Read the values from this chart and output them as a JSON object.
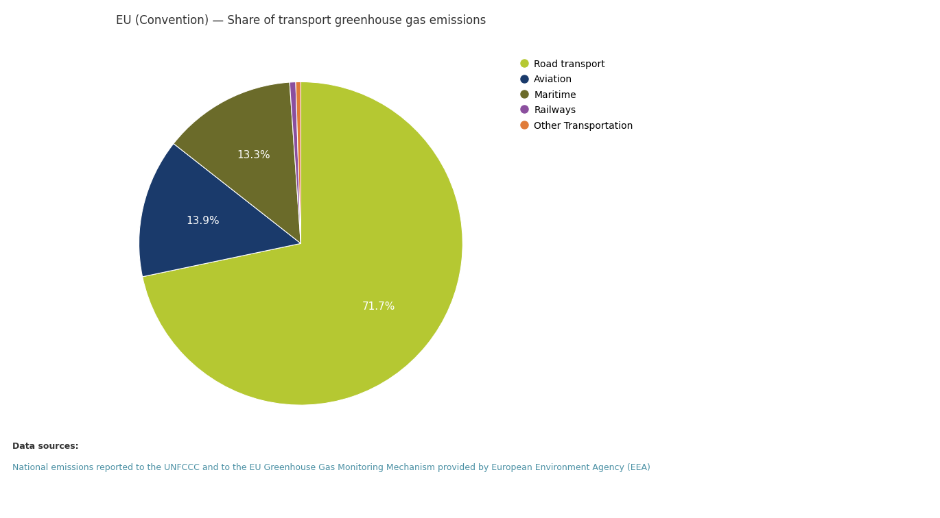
{
  "title": "EU (Convention) — Share of transport greenhouse gas emissions",
  "slices": [
    71.7,
    13.9,
    13.3,
    0.6,
    0.5
  ],
  "labels": [
    "Road transport",
    "Aviation",
    "Maritime",
    "Railways",
    "Other Transportation"
  ],
  "colors": [
    "#b5c832",
    "#1a3a6b",
    "#6b6b2a",
    "#8b4f9e",
    "#e07b39"
  ],
  "pct_labels": [
    "71.7%",
    "13.9%",
    "13.3%",
    "",
    ""
  ],
  "startangle": 90,
  "bg_color": "#ffffff",
  "footer_bg": "#e0e0e0",
  "footer_text_bold": "Data sources:",
  "footer_link1": "National emissions reported to the UNFCCC and to the EU Greenhouse Gas Monitoring Mechanism",
  "footer_link2": " provided by ",
  "footer_link3": "European Environment Agency (EEA)",
  "footer_text_color": "#333333",
  "footer_link_color": "#4a90a4",
  "title_fontsize": 12,
  "label_fontsize": 11,
  "legend_fontsize": 10
}
